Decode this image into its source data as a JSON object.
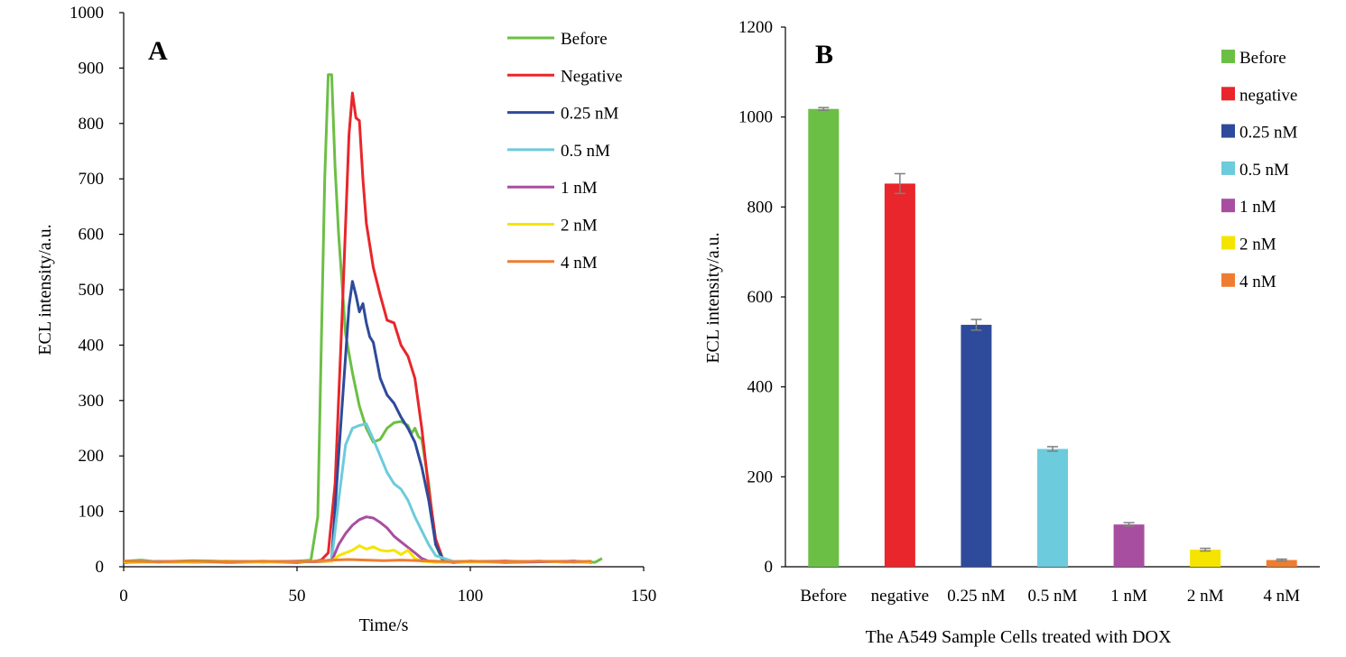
{
  "chart_data": [
    {
      "type": "line",
      "panel_label": "A",
      "xlabel": "Time/s",
      "ylabel": "ECL intensity/a.u.",
      "xlim": [
        0,
        150
      ],
      "ylim": [
        0,
        1000
      ],
      "x_ticks": [
        "0",
        "50",
        "100",
        "150"
      ],
      "y_ticks": [
        "0",
        "100",
        "200",
        "300",
        "400",
        "500",
        "600",
        "700",
        "800",
        "900",
        "1000"
      ],
      "legend_position": "top-right",
      "series": [
        {
          "name": "Before",
          "color": "#6cbf45",
          "x": [
            0,
            5,
            10,
            20,
            30,
            40,
            50,
            54,
            56,
            57,
            58,
            59,
            60,
            61,
            62,
            64,
            66,
            68,
            70,
            72,
            74,
            76,
            78,
            80,
            82,
            83,
            84,
            85,
            86,
            88,
            89,
            90,
            92,
            95,
            100,
            110,
            120,
            130,
            136,
            138
          ],
          "y": [
            10,
            12,
            9,
            11,
            10,
            9,
            10,
            12,
            90,
            400,
            700,
            888,
            888,
            720,
            600,
            420,
            350,
            290,
            250,
            225,
            230,
            250,
            260,
            262,
            255,
            240,
            250,
            235,
            230,
            150,
            90,
            40,
            10,
            8,
            9,
            10,
            9,
            10,
            8,
            15
          ]
        },
        {
          "name": "Negative",
          "color": "#e8262b",
          "x": [
            0,
            10,
            20,
            30,
            40,
            50,
            55,
            57,
            59,
            61,
            63,
            65,
            66,
            67,
            68,
            69,
            70,
            72,
            74,
            76,
            78,
            80,
            82,
            84,
            86,
            88,
            90,
            92,
            95,
            100,
            110,
            120,
            130,
            135
          ],
          "y": [
            8,
            10,
            9,
            10,
            8,
            9,
            10,
            12,
            25,
            150,
            450,
            780,
            855,
            810,
            805,
            700,
            620,
            540,
            490,
            445,
            440,
            400,
            380,
            340,
            250,
            140,
            50,
            15,
            8,
            9,
            10,
            9,
            10,
            8
          ]
        },
        {
          "name": "0.25 nM",
          "color": "#2e4a9a",
          "x": [
            0,
            10,
            20,
            30,
            40,
            50,
            55,
            60,
            62,
            64,
            65,
            66,
            67,
            68,
            69,
            70,
            71,
            72,
            74,
            76,
            78,
            80,
            82,
            84,
            86,
            88,
            90,
            92,
            95,
            100,
            110,
            120,
            130,
            135
          ],
          "y": [
            10,
            8,
            9,
            10,
            9,
            8,
            10,
            12,
            200,
            380,
            470,
            515,
            490,
            460,
            475,
            440,
            415,
            405,
            340,
            310,
            295,
            270,
            250,
            225,
            180,
            120,
            40,
            15,
            8,
            10,
            9,
            10,
            8,
            9
          ]
        },
        {
          "name": "0.5 nM",
          "color": "#6ccbdc",
          "x": [
            0,
            10,
            20,
            30,
            40,
            50,
            55,
            60,
            62,
            64,
            66,
            68,
            70,
            72,
            74,
            76,
            78,
            80,
            82,
            84,
            86,
            88,
            90,
            95,
            100,
            110,
            120,
            130,
            135
          ],
          "y": [
            9,
            10,
            8,
            9,
            10,
            9,
            10,
            12,
            120,
            220,
            250,
            255,
            258,
            230,
            200,
            170,
            150,
            140,
            120,
            90,
            65,
            40,
            20,
            10,
            9,
            8,
            9,
            10,
            8
          ]
        },
        {
          "name": "1 nM",
          "color": "#a84ea0",
          "x": [
            0,
            10,
            20,
            30,
            40,
            50,
            55,
            60,
            62,
            64,
            66,
            68,
            70,
            72,
            74,
            76,
            78,
            80,
            82,
            84,
            86,
            88,
            90,
            95,
            100,
            110,
            120,
            130,
            135
          ],
          "y": [
            8,
            9,
            10,
            8,
            9,
            10,
            9,
            10,
            40,
            60,
            75,
            85,
            90,
            88,
            80,
            70,
            55,
            45,
            35,
            25,
            15,
            10,
            8,
            9,
            10,
            8,
            9,
            10,
            8
          ]
        },
        {
          "name": "2 nM",
          "color": "#f5e400",
          "x": [
            0,
            10,
            20,
            30,
            40,
            50,
            55,
            60,
            62,
            64,
            66,
            68,
            70,
            72,
            74,
            76,
            78,
            80,
            82,
            84,
            86,
            90,
            95,
            100,
            110,
            120,
            130,
            135
          ],
          "y": [
            9,
            8,
            9,
            10,
            8,
            9,
            10,
            10,
            20,
            25,
            30,
            38,
            32,
            36,
            30,
            28,
            30,
            22,
            30,
            15,
            10,
            8,
            9,
            8,
            9,
            10,
            8,
            9
          ]
        },
        {
          "name": "4 nM",
          "color": "#ee7d31",
          "x": [
            0,
            10,
            20,
            30,
            40,
            50,
            55,
            60,
            65,
            70,
            75,
            80,
            85,
            90,
            95,
            100,
            110,
            120,
            130,
            135
          ],
          "y": [
            10,
            9,
            10,
            9,
            10,
            9,
            10,
            12,
            13,
            12,
            11,
            12,
            11,
            10,
            9,
            10,
            9,
            10,
            9,
            10
          ]
        }
      ]
    },
    {
      "type": "bar",
      "panel_label": "B",
      "xlabel": "The A549 Sample Cells treated with DOX",
      "ylabel": "ECL intensity/a.u.",
      "ylim": [
        0,
        1200
      ],
      "y_ticks": [
        "0",
        "200",
        "400",
        "600",
        "800",
        "1000",
        "1200"
      ],
      "categories": [
        "Before",
        "negative",
        "0.25 nM",
        "0.5 nM",
        "1 nM",
        "2 nM",
        "4 nM"
      ],
      "values": [
        1018,
        852,
        538,
        262,
        94,
        38,
        15
      ],
      "errors": [
        3,
        22,
        12,
        5,
        4,
        3,
        2
      ],
      "colors": [
        "#6cbf45",
        "#e8262b",
        "#2e4a9a",
        "#6ccbdc",
        "#a84ea0",
        "#f5e400",
        "#ee7d31"
      ],
      "legend_labels": [
        "Before",
        "negative",
        "0.25 nM",
        "0.5 nM",
        "1 nM",
        "2 nM",
        "4 nM"
      ],
      "legend_position": "top-right"
    }
  ]
}
